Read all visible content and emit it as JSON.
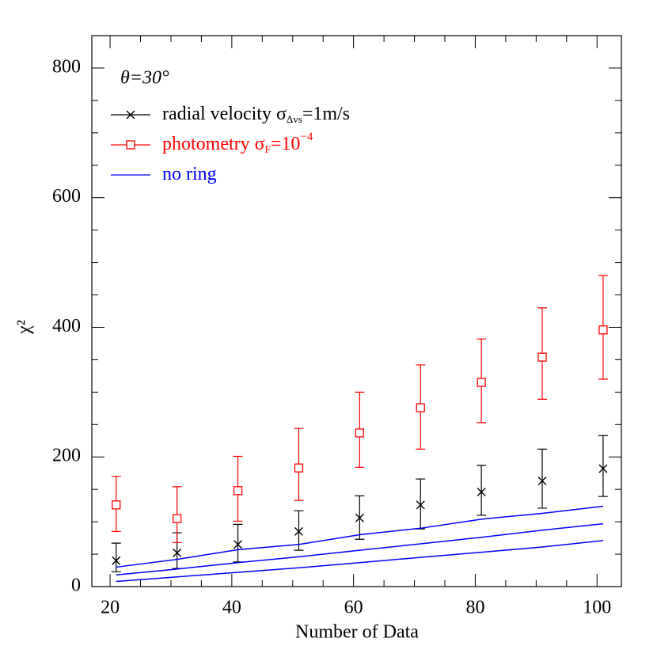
{
  "chart_data": {
    "type": "errorbar",
    "annotation": "θ=30°",
    "xlabel": "Number of Data",
    "ylabel": "χ²",
    "x": [
      21,
      31,
      41,
      51,
      61,
      71,
      81,
      91,
      101
    ],
    "xlim": [
      17,
      104
    ],
    "ylim": [
      0,
      850
    ],
    "xticks": [
      20,
      40,
      60,
      80,
      100
    ],
    "yticks": [
      0,
      200,
      400,
      600,
      800
    ],
    "xminorticks": [
      25,
      30,
      35,
      45,
      50,
      55,
      65,
      70,
      75,
      85,
      90,
      95
    ],
    "yminorticks": [
      50,
      100,
      150,
      250,
      300,
      350,
      450,
      500,
      550,
      650,
      700,
      750
    ],
    "series": [
      {
        "name": "radial velocity σ",
        "name_sub": "Δvs",
        "name_rest": "=1m/s",
        "color": "#000000",
        "marker": "x",
        "values": [
          40,
          52,
          65,
          85,
          106,
          126,
          146,
          163,
          182
        ],
        "upper": [
          67,
          83,
          96,
          117,
          140,
          166,
          187,
          212,
          233
        ],
        "lower": [
          23,
          28,
          38,
          56,
          73,
          89,
          110,
          121,
          139
        ]
      },
      {
        "name": "photometry σ",
        "name_sub": "F",
        "name_rest": "=10",
        "name_sup": "−4",
        "color": "#ff0000",
        "marker": "square",
        "values": [
          126,
          105,
          148,
          183,
          237,
          276,
          315,
          354,
          396
        ],
        "upper": [
          170,
          154,
          201,
          244,
          300,
          342,
          382,
          430,
          480
        ],
        "lower": [
          85,
          68,
          101,
          133,
          184,
          212,
          253,
          289,
          320
        ]
      },
      {
        "name": "no ring",
        "color": "#0000ff",
        "marker": "line",
        "curves": [
          [
            30,
            42,
            57,
            65,
            80,
            90,
            104,
            113,
            124
          ],
          [
            18,
            27,
            37,
            46,
            56,
            66,
            76,
            87,
            97
          ],
          [
            8,
            15,
            22,
            29,
            37,
            45,
            53,
            61,
            71
          ]
        ]
      }
    ]
  }
}
